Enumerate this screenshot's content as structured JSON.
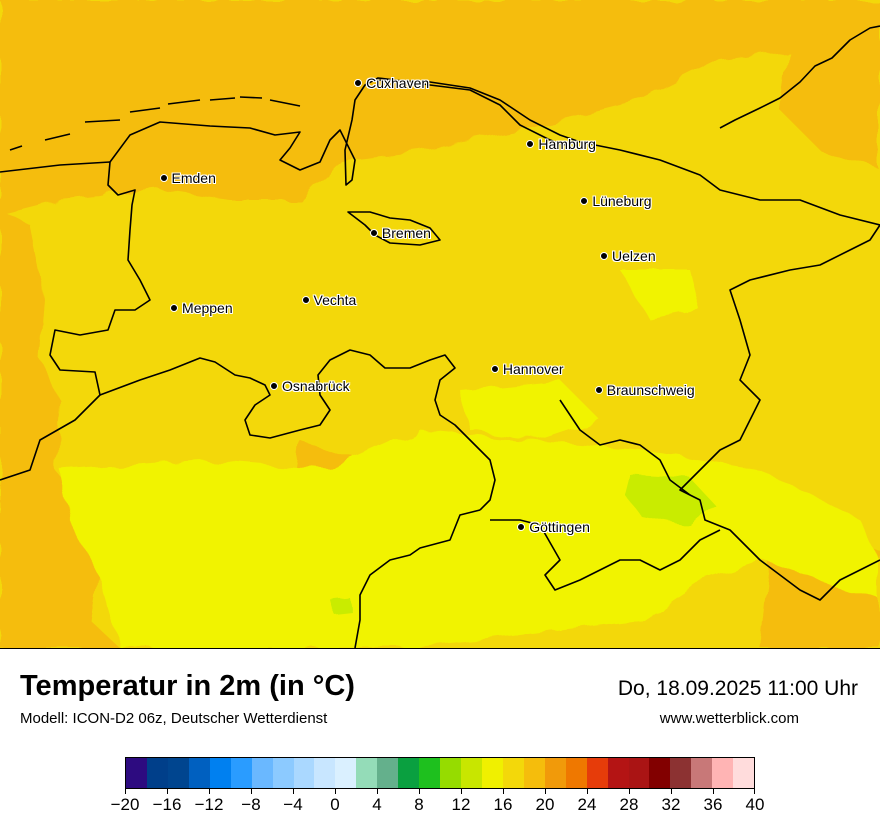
{
  "map": {
    "cities": [
      {
        "name": "Cuxhaven",
        "lon": 8.69,
        "lat": 53.87
      },
      {
        "name": "Hamburg",
        "lon": 10.0,
        "lat": 53.55
      },
      {
        "name": "Emden",
        "lon": 7.21,
        "lat": 53.37
      },
      {
        "name": "Lüneburg",
        "lon": 10.41,
        "lat": 53.25
      },
      {
        "name": "Bremen",
        "lon": 8.81,
        "lat": 53.08
      },
      {
        "name": "Uelzen",
        "lon": 10.56,
        "lat": 52.96
      },
      {
        "name": "Vechta",
        "lon": 8.29,
        "lat": 52.73
      },
      {
        "name": "Meppen",
        "lon": 7.29,
        "lat": 52.69
      },
      {
        "name": "Hannover",
        "lon": 9.73,
        "lat": 52.37
      },
      {
        "name": "Osnabrück",
        "lon": 8.05,
        "lat": 52.28
      },
      {
        "name": "Braunschweig",
        "lon": 10.52,
        "lat": 52.26
      },
      {
        "name": "Göttingen",
        "lon": 9.93,
        "lat": 51.54
      }
    ],
    "field_colors": {
      "orange_band": "#f5bd0c",
      "yellow_main": "#f3d80a",
      "yellow_light": "#f1f300",
      "yellow_green": "#c9ec00"
    }
  },
  "header": {
    "title": "Temperatur in 2m (in °C)",
    "subtitle": "Modell: ICON-D2 06z, Deutscher Wetterdienst",
    "datetime": "Do, 18.09.2025 11:00 Uhr",
    "website": "www.wetterblick.com"
  },
  "colorbar": {
    "colors": [
      "#2d0b80",
      "#003f8a",
      "#00458f",
      "#0060c0",
      "#0080f0",
      "#2a9cff",
      "#6ab8ff",
      "#8ccaff",
      "#aad8ff",
      "#c8e6ff",
      "#daf0ff",
      "#94dcb8",
      "#64b08c",
      "#0aa040",
      "#1ec01e",
      "#96dc00",
      "#c8e600",
      "#f0f000",
      "#f3d80a",
      "#f5bd0c",
      "#f19a0a",
      "#ef7800",
      "#e63c0a",
      "#b41414",
      "#aa1414",
      "#820000",
      "#8c3232",
      "#c87878",
      "#ffb4b4",
      "#ffdcdc"
    ],
    "tick_labels": [
      "−20",
      "−16",
      "−12",
      "−8",
      "−4",
      "0",
      "4",
      "8",
      "12",
      "16",
      "20",
      "24",
      "28",
      "32",
      "36",
      "40"
    ]
  }
}
